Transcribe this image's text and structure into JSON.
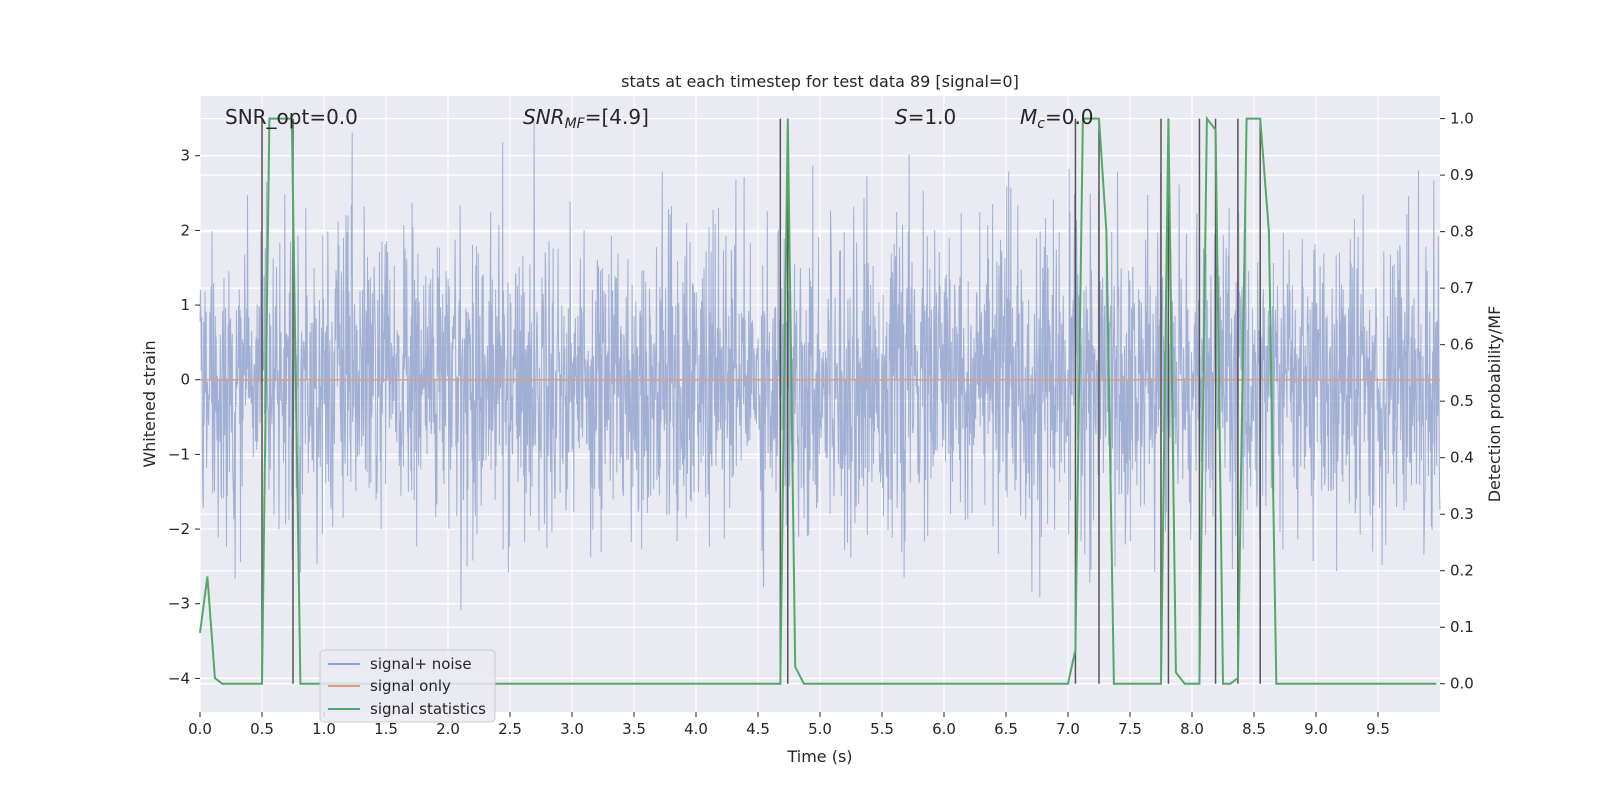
{
  "chart_data": {
    "type": "line",
    "title": "stats at each timestep for test data 89 [signal=0]",
    "xlabel": "Time (s)",
    "ylabel": "Whitened strain",
    "y2label": "Detection probability/MF",
    "xlim": [
      0.0,
      10.0
    ],
    "ylim": [
      -4.45,
      3.8
    ],
    "y2lim": [
      -0.05,
      1.04
    ],
    "x_ticks": [
      0.0,
      0.5,
      1.0,
      1.5,
      2.0,
      2.5,
      3.0,
      3.5,
      4.0,
      4.5,
      5.0,
      5.5,
      6.0,
      6.5,
      7.0,
      7.5,
      8.0,
      8.5,
      9.0,
      9.5
    ],
    "x_tick_labels": [
      "0.0",
      "0.5",
      "1.0",
      "1.5",
      "2.0",
      "2.5",
      "3.0",
      "3.5",
      "4.0",
      "4.5",
      "5.0",
      "5.5",
      "6.0",
      "6.5",
      "7.0",
      "7.5",
      "8.0",
      "8.5",
      "9.0",
      "9.5"
    ],
    "y_ticks": [
      -4,
      -3,
      -2,
      -1,
      0,
      1,
      2,
      3
    ],
    "y_tick_labels": [
      "−4",
      "−3",
      "−2",
      "−1",
      "0",
      "1",
      "2",
      "3"
    ],
    "y2_ticks": [
      0.0,
      0.1,
      0.2,
      0.3,
      0.4,
      0.5,
      0.6,
      0.7,
      0.8,
      0.9,
      1.0
    ],
    "y2_tick_labels": [
      "0.0",
      "0.1",
      "0.2",
      "0.3",
      "0.4",
      "0.5",
      "0.6",
      "0.7",
      "0.8",
      "0.9",
      "1.0"
    ],
    "grid": true,
    "legend_position": "lower-left",
    "annotations": {
      "snr_opt": "SNR_opt=0.0",
      "snr_mf_sym": "SNR",
      "snr_mf_sub": "MF",
      "snr_mf_val": "=[4.9]",
      "s_sym": "S",
      "s_val": "=1.0",
      "mc_sym": "M",
      "mc_sub": "c",
      "mc_val": "=0.0"
    },
    "series": [
      {
        "name": "signal+ noise",
        "axis": "left",
        "color": "#8da0cb",
        "kind": "noise",
        "x_range": [
          0.0,
          10.0
        ],
        "envelope": [
          -3.6,
          3.5
        ]
      },
      {
        "name": "signal only",
        "axis": "left",
        "color": "#dd9f7f",
        "x": [
          0.0,
          10.0
        ],
        "y": [
          0.0,
          0.0
        ]
      },
      {
        "name": "signal statistics",
        "axis": "right",
        "color": "#55a868",
        "x": [
          0.0,
          0.06,
          0.12,
          0.18,
          0.5,
          0.56,
          0.74,
          0.81,
          1.0,
          4.68,
          4.74,
          4.8,
          4.87,
          7.0,
          7.06,
          7.12,
          7.25,
          7.31,
          7.37,
          7.75,
          7.81,
          7.87,
          7.94,
          8.06,
          8.12,
          8.19,
          8.25,
          8.31,
          8.37,
          8.44,
          8.55,
          8.62,
          8.68,
          9.97
        ],
        "y": [
          0.09,
          0.19,
          0.01,
          0.0,
          0.0,
          1.0,
          1.0,
          0.0,
          0.0,
          0.0,
          1.0,
          0.03,
          0.0,
          0.0,
          0.06,
          1.0,
          1.0,
          0.8,
          0.0,
          0.0,
          1.0,
          0.02,
          0.0,
          0.0,
          1.0,
          0.98,
          0.0,
          0.0,
          0.01,
          1.0,
          1.0,
          0.8,
          0.0,
          0.0
        ]
      }
    ],
    "markers": {
      "color": "#555555",
      "axis": "right",
      "x": [
        0.5,
        0.75,
        4.68,
        4.74,
        7.06,
        7.25,
        7.75,
        7.81,
        8.06,
        8.19,
        8.37,
        8.55
      ],
      "y_top": 1.0
    }
  }
}
